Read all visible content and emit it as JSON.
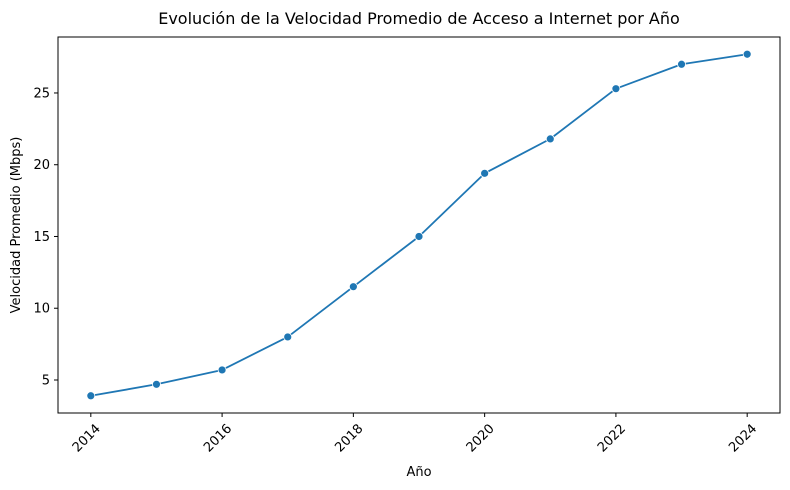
{
  "chart_data": {
    "type": "line",
    "title": "Evolución de la Velocidad Promedio de Acceso a Internet por Año",
    "xlabel": "Año",
    "ylabel": "Velocidad Promedio (Mbps)",
    "x": [
      2014,
      2015,
      2016,
      2017,
      2018,
      2019,
      2020,
      2021,
      2022,
      2023,
      2024
    ],
    "series": [
      {
        "values": [
          3.9,
          4.7,
          5.7,
          8.0,
          11.5,
          15.0,
          19.4,
          21.8,
          25.3,
          27.0,
          27.7
        ],
        "color": "#1f77b4",
        "marker": "circle"
      }
    ],
    "xlim": [
      2013.5,
      2024.5
    ],
    "ylim": [
      2.7,
      28.9
    ],
    "xticks": [
      2014,
      2016,
      2018,
      2020,
      2022,
      2024
    ],
    "xtick_labels": [
      "2014",
      "2016",
      "2018",
      "2020",
      "2022",
      "2024"
    ],
    "xtick_rotation": 45,
    "yticks": [
      5,
      10,
      15,
      20,
      25
    ],
    "ytick_labels": [
      "5",
      "10",
      "15",
      "20",
      "25"
    ],
    "grid": false,
    "legend": false
  }
}
